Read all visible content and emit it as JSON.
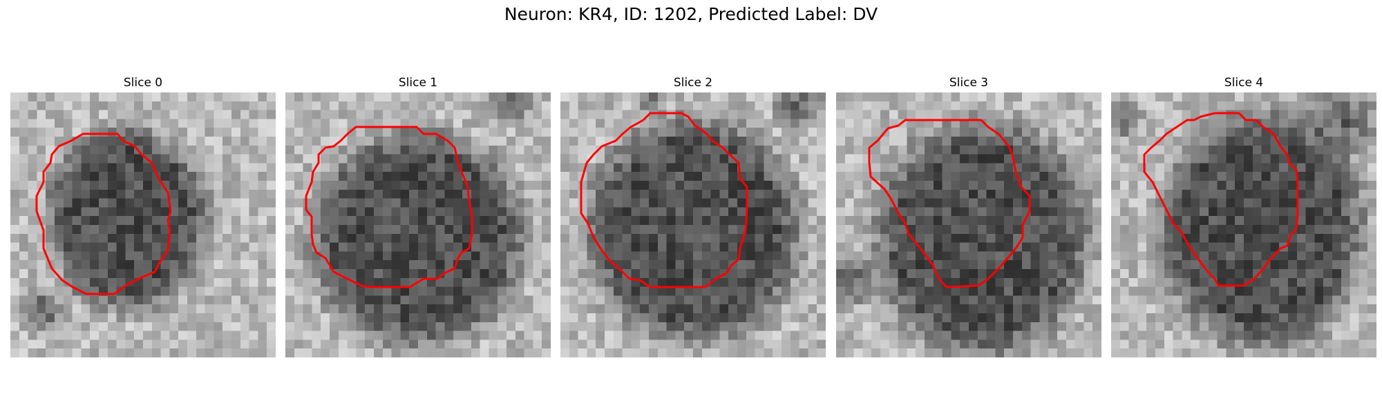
{
  "figure": {
    "title": "Neuron: KR4, ID: 1202, Predicted Label: DV"
  },
  "colors": {
    "contour": "#ff0000",
    "colormap": "gray"
  },
  "panels": [
    {
      "title": "Slice 0"
    },
    {
      "title": "Slice 1"
    },
    {
      "title": "Slice 2"
    },
    {
      "title": "Slice 3"
    },
    {
      "title": "Slice 4"
    }
  ]
}
